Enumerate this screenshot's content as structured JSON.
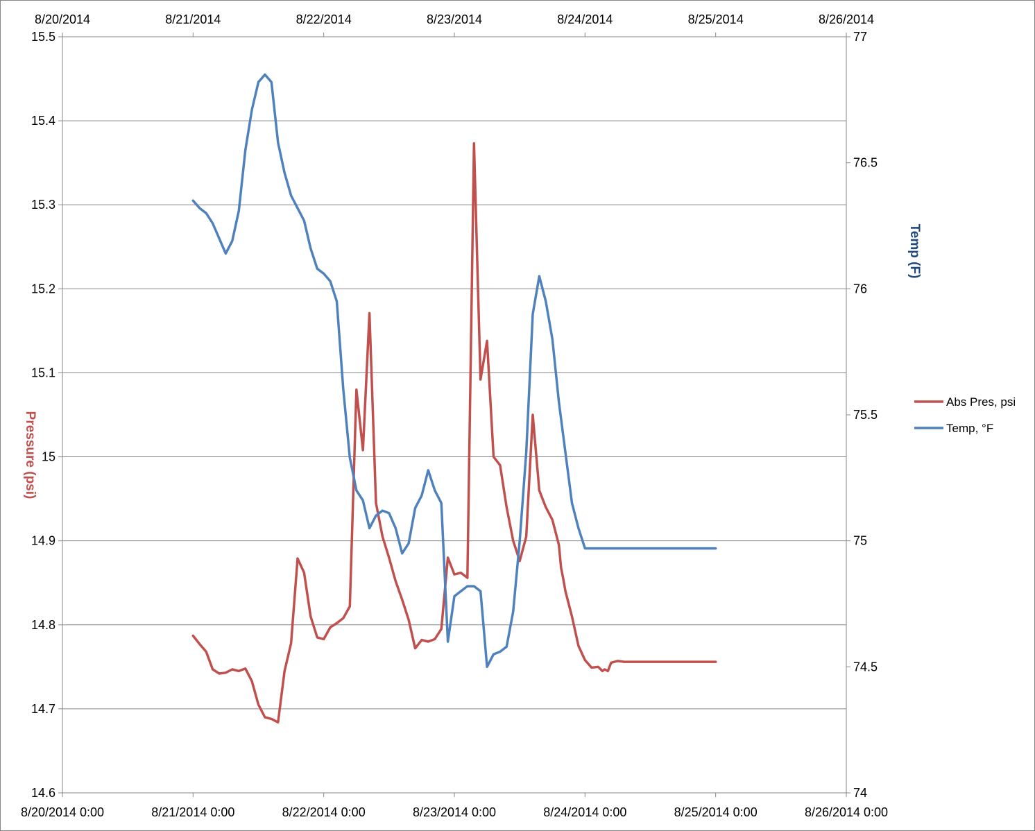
{
  "chart_data": {
    "type": "line",
    "title": "",
    "xlabel": "",
    "ylabel": "Pressure (psi)",
    "y2label": "Temp (F)",
    "xlim": [
      "2014-08-20",
      "2014-08-26"
    ],
    "ylim": [
      14.6,
      15.5
    ],
    "y2lim": [
      74,
      77
    ],
    "grid": true,
    "legend_position": "right",
    "x_ticks_top": [
      "8/20/2014",
      "8/21/2014",
      "8/22/2014",
      "8/23/2014",
      "8/24/2014",
      "8/25/2014",
      "8/26/2014"
    ],
    "x_ticks_bottom": [
      "8/20/2014 0:00",
      "8/21/2014 0:00",
      "8/22/2014 0:00",
      "8/23/2014 0:00",
      "8/24/2014 0:00",
      "8/25/2014 0:00",
      "8/26/2014 0:00"
    ],
    "y_ticks": [
      "14.6",
      "14.7",
      "14.8",
      "14.9",
      "15",
      "15.1",
      "15.2",
      "15.3",
      "15.4",
      "15.5"
    ],
    "y2_ticks": [
      "74",
      "74.5",
      "75",
      "75.5",
      "76",
      "76.5",
      "77"
    ],
    "series": [
      {
        "name": "Abs Pres, psi",
        "axis": "left",
        "color": "#c0504d",
        "x": [
          "2014-08-21 00:00",
          "2014-08-21 01:12",
          "2014-08-21 02:24",
          "2014-08-21 03:36",
          "2014-08-21 04:48",
          "2014-08-21 06:00",
          "2014-08-21 07:12",
          "2014-08-21 08:24",
          "2014-08-21 09:36",
          "2014-08-21 10:48",
          "2014-08-21 12:00",
          "2014-08-21 13:12",
          "2014-08-21 14:24",
          "2014-08-21 15:36",
          "2014-08-21 16:48",
          "2014-08-21 18:00",
          "2014-08-21 19:12",
          "2014-08-21 20:24",
          "2014-08-21 21:36",
          "2014-08-21 22:48",
          "2014-08-22 00:00",
          "2014-08-22 01:12",
          "2014-08-22 02:24",
          "2014-08-22 03:36",
          "2014-08-22 04:48",
          "2014-08-22 06:00",
          "2014-08-22 07:12",
          "2014-08-22 08:24",
          "2014-08-22 09:36",
          "2014-08-22 10:48",
          "2014-08-22 12:00",
          "2014-08-22 13:12",
          "2014-08-22 14:24",
          "2014-08-22 15:36",
          "2014-08-22 16:48",
          "2014-08-22 18:00",
          "2014-08-22 19:12",
          "2014-08-22 20:24",
          "2014-08-22 21:36",
          "2014-08-22 22:48",
          "2014-08-23 00:00",
          "2014-08-23 01:12",
          "2014-08-23 02:24",
          "2014-08-23 03:36",
          "2014-08-23 04:48",
          "2014-08-23 06:00",
          "2014-08-23 07:12",
          "2014-08-23 08:24",
          "2014-08-23 09:36",
          "2014-08-23 10:48",
          "2014-08-23 12:00",
          "2014-08-23 13:12",
          "2014-08-23 14:24",
          "2014-08-23 15:36",
          "2014-08-23 16:48",
          "2014-08-23 18:00",
          "2014-08-23 19:12",
          "2014-08-23 19:36",
          "2014-08-23 20:00",
          "2014-08-23 20:24",
          "2014-08-23 21:00",
          "2014-08-23 21:36",
          "2014-08-23 22:48",
          "2014-08-24 00:00",
          "2014-08-24 01:12",
          "2014-08-24 02:24",
          "2014-08-24 03:12",
          "2014-08-24 03:36",
          "2014-08-24 04:12",
          "2014-08-24 04:48",
          "2014-08-24 06:00",
          "2014-08-24 07:12",
          "2014-08-24 08:24",
          "2014-08-24 09:36",
          "2014-08-24 10:48",
          "2014-08-24 12:00",
          "2014-08-24 13:12",
          "2014-08-24 14:24",
          "2014-08-24 15:36",
          "2014-08-24 16:48",
          "2014-08-24 18:00",
          "2014-08-24 19:12",
          "2014-08-24 20:24",
          "2014-08-24 21:36",
          "2014-08-24 22:48",
          "2014-08-25 00:00"
        ],
        "values": [
          14.787,
          14.777,
          14.768,
          14.747,
          14.742,
          14.743,
          14.747,
          14.745,
          14.748,
          14.733,
          14.705,
          14.69,
          14.688,
          14.684,
          14.745,
          14.778,
          14.879,
          14.862,
          14.81,
          14.785,
          14.783,
          14.797,
          14.802,
          14.808,
          14.822,
          15.08,
          15.008,
          15.171,
          14.945,
          14.905,
          14.88,
          14.852,
          14.83,
          14.806,
          14.772,
          14.782,
          14.78,
          14.783,
          14.795,
          14.88,
          14.86,
          14.862,
          14.856,
          15.373,
          15.092,
          15.138,
          15.0,
          14.99,
          14.94,
          14.9,
          14.876,
          14.905,
          15.05,
          14.96,
          14.94,
          14.925,
          14.895,
          14.868,
          14.855,
          14.84,
          14.825,
          14.81,
          14.775,
          14.758,
          14.749,
          14.75,
          14.745,
          14.747,
          14.745,
          14.755,
          14.757,
          14.756,
          14.756,
          14.756,
          14.756,
          14.756,
          14.756,
          14.756,
          14.756,
          14.756,
          14.756,
          14.756,
          14.756,
          14.756,
          14.756,
          14.756
        ]
      },
      {
        "name": "Temp, °F",
        "axis": "right",
        "color": "#4f81bd",
        "x": [
          "2014-08-21 00:00",
          "2014-08-21 01:12",
          "2014-08-21 02:24",
          "2014-08-21 03:36",
          "2014-08-21 04:48",
          "2014-08-21 06:00",
          "2014-08-21 07:12",
          "2014-08-21 08:24",
          "2014-08-21 09:36",
          "2014-08-21 10:48",
          "2014-08-21 12:00",
          "2014-08-21 13:12",
          "2014-08-21 14:24",
          "2014-08-21 15:36",
          "2014-08-21 16:48",
          "2014-08-21 18:00",
          "2014-08-21 19:12",
          "2014-08-21 20:24",
          "2014-08-21 21:36",
          "2014-08-21 22:48",
          "2014-08-22 00:00",
          "2014-08-22 01:12",
          "2014-08-22 02:24",
          "2014-08-22 03:36",
          "2014-08-22 04:48",
          "2014-08-22 06:00",
          "2014-08-22 07:12",
          "2014-08-22 08:24",
          "2014-08-22 09:36",
          "2014-08-22 10:48",
          "2014-08-22 12:00",
          "2014-08-22 13:12",
          "2014-08-22 14:24",
          "2014-08-22 15:36",
          "2014-08-22 16:48",
          "2014-08-22 18:00",
          "2014-08-22 19:12",
          "2014-08-22 20:24",
          "2014-08-22 21:36",
          "2014-08-22 22:48",
          "2014-08-23 00:00",
          "2014-08-23 01:12",
          "2014-08-23 02:24",
          "2014-08-23 03:36",
          "2014-08-23 04:48",
          "2014-08-23 06:00",
          "2014-08-23 07:12",
          "2014-08-23 08:24",
          "2014-08-23 09:36",
          "2014-08-23 10:48",
          "2014-08-23 12:00",
          "2014-08-23 13:12",
          "2014-08-23 14:24",
          "2014-08-23 15:36",
          "2014-08-23 16:48",
          "2014-08-23 18:00",
          "2014-08-23 19:12",
          "2014-08-23 20:24",
          "2014-08-23 21:36",
          "2014-08-23 22:48",
          "2014-08-24 00:00",
          "2014-08-24 01:12",
          "2014-08-24 02:24",
          "2014-08-24 03:36",
          "2014-08-24 04:48",
          "2014-08-24 06:00",
          "2014-08-24 07:12",
          "2014-08-24 08:24",
          "2014-08-24 09:36",
          "2014-08-24 10:48",
          "2014-08-24 12:00",
          "2014-08-24 13:12",
          "2014-08-24 14:24",
          "2014-08-24 15:36",
          "2014-08-24 16:48",
          "2014-08-24 18:00",
          "2014-08-24 19:12",
          "2014-08-24 20:24",
          "2014-08-24 21:36",
          "2014-08-24 22:48",
          "2014-08-25 00:00"
        ],
        "values": [
          76.35,
          76.32,
          76.3,
          76.26,
          76.2,
          76.14,
          76.19,
          76.31,
          76.55,
          76.71,
          76.82,
          76.85,
          76.82,
          76.58,
          76.46,
          76.37,
          76.32,
          76.27,
          76.16,
          76.08,
          76.06,
          76.03,
          75.95,
          75.6,
          75.33,
          75.2,
          75.16,
          75.05,
          75.1,
          75.12,
          75.11,
          75.05,
          74.95,
          74.99,
          75.13,
          75.18,
          75.28,
          75.2,
          75.15,
          74.6,
          74.78,
          74.8,
          74.82,
          74.82,
          74.8,
          74.5,
          74.55,
          74.56,
          74.58,
          74.72,
          75.0,
          75.35,
          75.9,
          76.05,
          75.95,
          75.8,
          75.55,
          75.35,
          75.15,
          75.05,
          74.97,
          74.97,
          74.97,
          74.97,
          74.97,
          74.97,
          74.97,
          74.97,
          74.97,
          74.97,
          74.97,
          74.97,
          74.97,
          74.97,
          74.97,
          74.97,
          74.97,
          74.97,
          74.97,
          74.97,
          74.97
        ]
      }
    ]
  }
}
